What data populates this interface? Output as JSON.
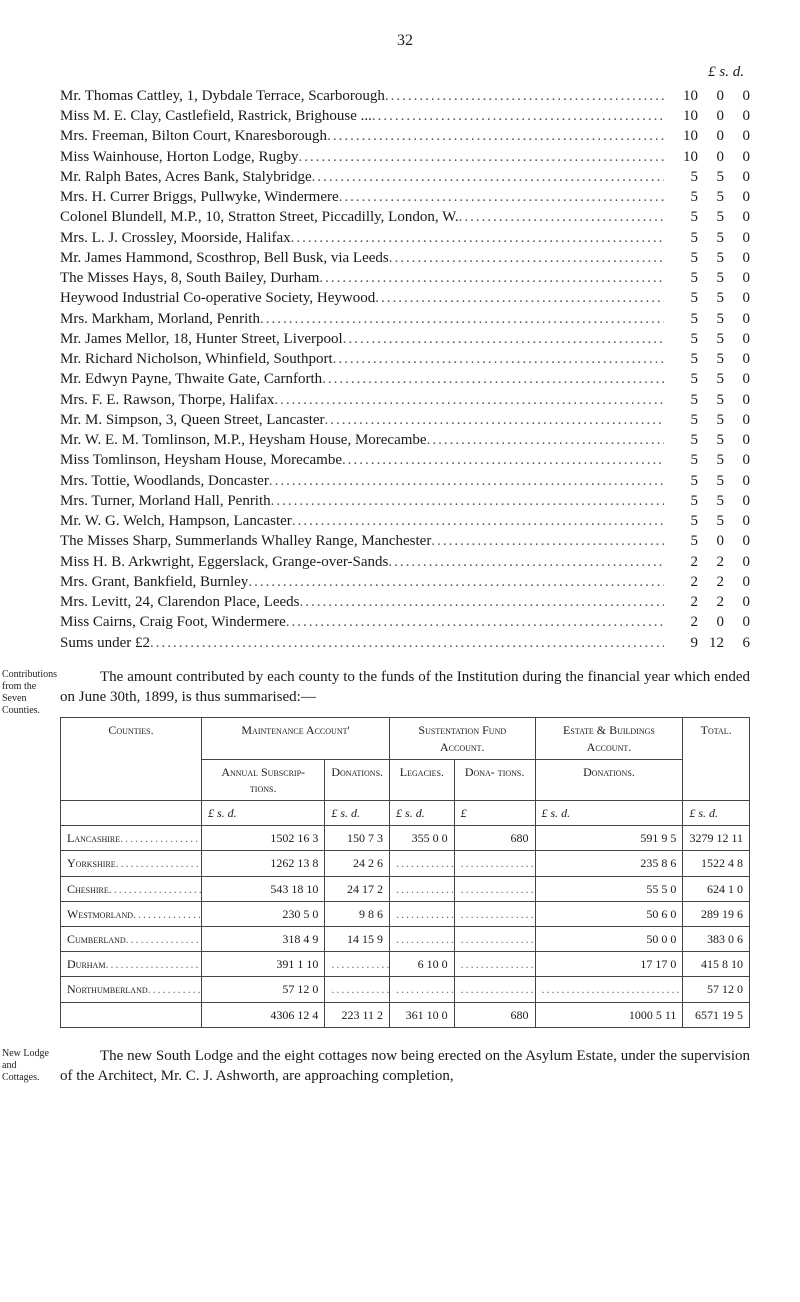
{
  "page_number": "32",
  "money_heading": "£   s.   d.",
  "donors": [
    {
      "label": "Mr. Thomas Cattley, 1, Dybdale Terrace, Scarborough",
      "l": "10",
      "s": "0",
      "d": "0"
    },
    {
      "label": "Miss M. E. Clay, Castlefield, Rastrick, Brighouse ...",
      "l": "10",
      "s": "0",
      "d": "0"
    },
    {
      "label": "Mrs. Freeman, Bilton Court, Knaresborough",
      "l": "10",
      "s": "0",
      "d": "0"
    },
    {
      "label": "Miss Wainhouse, Horton Lodge, Rugby",
      "l": "10",
      "s": "0",
      "d": "0"
    },
    {
      "label": "Mr. Ralph Bates, Acres Bank, Stalybridge",
      "l": "5",
      "s": "5",
      "d": "0"
    },
    {
      "label": "Mrs. H. Currer Briggs, Pullwyke, Windermere",
      "l": "5",
      "s": "5",
      "d": "0"
    },
    {
      "label": "Colonel Blundell, M.P., 10, Stratton Street, Piccadilly, London, W.",
      "l": "5",
      "s": "5",
      "d": "0"
    },
    {
      "label": "Mrs. L. J. Crossley, Moorside, Halifax",
      "l": "5",
      "s": "5",
      "d": "0"
    },
    {
      "label": "Mr. James Hammond, Scosthrop, Bell Busk, via Leeds",
      "l": "5",
      "s": "5",
      "d": "0"
    },
    {
      "label": "The Misses Hays, 8, South Bailey, Durham",
      "l": "5",
      "s": "5",
      "d": "0"
    },
    {
      "label": "Heywood Industrial Co-operative Society, Heywood",
      "l": "5",
      "s": "5",
      "d": "0"
    },
    {
      "label": "Mrs. Markham, Morland, Penrith",
      "l": "5",
      "s": "5",
      "d": "0"
    },
    {
      "label": "Mr. James Mellor, 18, Hunter Street, Liverpool",
      "l": "5",
      "s": "5",
      "d": "0"
    },
    {
      "label": "Mr. Richard Nicholson, Whinfield, Southport",
      "l": "5",
      "s": "5",
      "d": "0"
    },
    {
      "label": "Mr. Edwyn Payne, Thwaite Gate, Carnforth",
      "l": "5",
      "s": "5",
      "d": "0"
    },
    {
      "label": "Mrs. F. E. Rawson, Thorpe, Halifax",
      "l": "5",
      "s": "5",
      "d": "0"
    },
    {
      "label": "Mr. M. Simpson, 3, Queen Street, Lancaster",
      "l": "5",
      "s": "5",
      "d": "0"
    },
    {
      "label": "Mr. W. E. M. Tomlinson, M.P., Heysham House, Morecambe",
      "l": "5",
      "s": "5",
      "d": "0"
    },
    {
      "label": "Miss Tomlinson, Heysham House, Morecambe",
      "l": "5",
      "s": "5",
      "d": "0"
    },
    {
      "label": "Mrs. Tottie, Woodlands, Doncaster",
      "l": "5",
      "s": "5",
      "d": "0"
    },
    {
      "label": "Mrs. Turner, Morland Hall, Penrith",
      "l": "5",
      "s": "5",
      "d": "0"
    },
    {
      "label": "Mr. W. G. Welch, Hampson, Lancaster",
      "l": "5",
      "s": "5",
      "d": "0"
    },
    {
      "label": "The Misses Sharp, Summerlands Whalley Range, Manchester",
      "l": "5",
      "s": "0",
      "d": "0"
    },
    {
      "label": "Miss H. B. Arkwright, Eggerslack, Grange-over-Sands",
      "l": "2",
      "s": "2",
      "d": "0"
    },
    {
      "label": "Mrs. Grant, Bankfield, Burnley",
      "l": "2",
      "s": "2",
      "d": "0"
    },
    {
      "label": "Mrs. Levitt, 24, Clarendon Place, Leeds",
      "l": "2",
      "s": "2",
      "d": "0"
    },
    {
      "label": "Miss Cairns, Craig Foot, Windermere",
      "l": "2",
      "s": "0",
      "d": "0"
    },
    {
      "label": "Sums under £2",
      "l": "9",
      "s": "12",
      "d": "6"
    }
  ],
  "margin_note_1": "Contributions from the Seven Counties.",
  "paragraph_1": "The amount contributed by each county to the funds of the Institution during the financial year which ended on June 30th, 1899, is thus summarised:—",
  "table": {
    "head": {
      "counties": "Counties.",
      "maintenance": "Maintenance Account'",
      "maintenance_sub1": "Annual Subscrip- tions.",
      "maintenance_sub2": "Donations.",
      "sustentation": "Sustentation Fund Account.",
      "sustentation_sub1": "Legacies.",
      "sustentation_sub2": "Dona- tions.",
      "estate": "Estate & Buildings Account.",
      "estate_sub": "Donations.",
      "total": "Total."
    },
    "lsd": "£  s.  d.",
    "rows": [
      {
        "county": "Lancashire",
        "c1": "1502 16  3",
        "c2": "150  7  3",
        "c3": "355  0  0",
        "c4": "680",
        "c5": "591  9  5",
        "c6": "3279 12 11"
      },
      {
        "county": "Yorkshire",
        "c1": "1262 13  8",
        "c2": "24  2  6",
        "c3": "",
        "c4": "",
        "c5": "235  8  6",
        "c6": "1522  4  8"
      },
      {
        "county": "Cheshire",
        "c1": "543 18 10",
        "c2": "24 17  2",
        "c3": "",
        "c4": "",
        "c5": "55  5  0",
        "c6": "624  1  0"
      },
      {
        "county": "Westmorland",
        "c1": "230  5  0",
        "c2": "9  8  6",
        "c3": "",
        "c4": "",
        "c5": "50  6  0",
        "c6": "289 19  6"
      },
      {
        "county": "Cumberland",
        "c1": "318  4  9",
        "c2": "14 15  9",
        "c3": "",
        "c4": "",
        "c5": "50  0  0",
        "c6": "383  0  6"
      },
      {
        "county": "Durham",
        "c1": "391  1 10",
        "c2": "",
        "c3": "6 10  0",
        "c4": "",
        "c5": "17 17  0",
        "c6": "415  8 10"
      },
      {
        "county": "Northumberland",
        "c1": "57 12  0",
        "c2": "",
        "c3": "",
        "c4": "",
        "c5": "",
        "c6": "57 12  0"
      }
    ],
    "totals": {
      "c1": "4306 12  4",
      "c2": "223 11  2",
      "c3": "361 10  0",
      "c4": "680",
      "c5": "1000  5 11",
      "c6": "6571 19  5"
    }
  },
  "margin_note_2": "New Lodge and Cottages.",
  "paragraph_2": "The new South Lodge and the eight cottages now being erected on the Asylum Estate, under the supervision of the Architect, Mr. C. J. Ashworth, are approaching completion,"
}
